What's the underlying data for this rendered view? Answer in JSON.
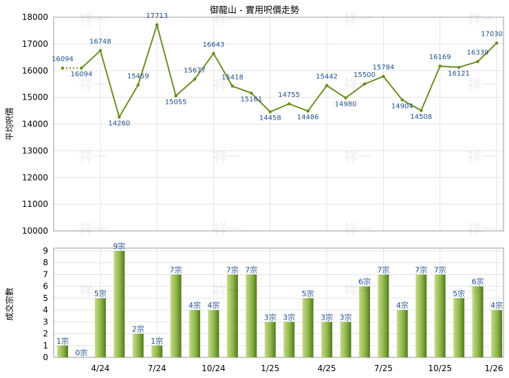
{
  "title": "御龍山 - 實用呎價走勢",
  "chart_data": [
    {
      "type": "line",
      "ylabel": "平均呎價",
      "ylim": [
        10000,
        18000
      ],
      "yticks": [
        10000,
        11000,
        12000,
        13000,
        14000,
        15000,
        16000,
        17000,
        18000
      ],
      "x_tick_labels": [
        "4/24",
        "7/24",
        "10/24",
        "1/25",
        "4/25",
        "7/25",
        "10/25",
        "1/26"
      ],
      "series": [
        {
          "values": [
            16094,
            16094,
            16748,
            14260,
            15459,
            17713,
            15055,
            15677,
            16643,
            15418,
            15161,
            14458,
            14755,
            14486,
            15442,
            14980,
            15500,
            15784,
            14904,
            14508,
            16169,
            16121,
            16339,
            17030
          ]
        }
      ],
      "labels": [
        "16094",
        "16094",
        "16748",
        "14260",
        "15459",
        "17713",
        "15055",
        "15677",
        "16643",
        "15418",
        "15161",
        "14458",
        "14755",
        "14486",
        "15442",
        "14980",
        "15500",
        "15784",
        "14904",
        "14508",
        "16169",
        "16121",
        "16339",
        "17030"
      ],
      "grid": true
    },
    {
      "type": "bar",
      "ylabel": "成交宗數",
      "ylim": [
        0,
        9
      ],
      "yticks": [
        0,
        1,
        2,
        3,
        4,
        5,
        6,
        7,
        8,
        9
      ],
      "x_tick_labels": [
        "4/24",
        "7/24",
        "10/24",
        "1/25",
        "4/25",
        "7/25",
        "10/25",
        "1/26"
      ],
      "values": [
        1,
        0,
        5,
        9,
        2,
        1,
        7,
        4,
        4,
        7,
        7,
        3,
        3,
        5,
        3,
        3,
        6,
        7,
        4,
        7,
        7,
        5,
        6,
        4
      ],
      "value_labels": [
        "1宗",
        "0宗",
        "5宗",
        "9宗",
        "2宗",
        "1宗",
        "7宗",
        "4宗",
        "4宗",
        "7宗",
        "7宗",
        "3宗",
        "3宗",
        "5宗",
        "3宗",
        "3宗",
        "6宗",
        "7宗",
        "4宗",
        "7宗",
        "7宗",
        "5宗",
        "6宗",
        "4宗"
      ],
      "grid": true
    }
  ],
  "watermark": "祥一",
  "colors": {
    "line": "#6b8e23",
    "bar_light": "#c5dc8a",
    "bar_dark": "#4f7a1c",
    "label": "#1f4e8c",
    "grid": "#e3e3e3"
  }
}
